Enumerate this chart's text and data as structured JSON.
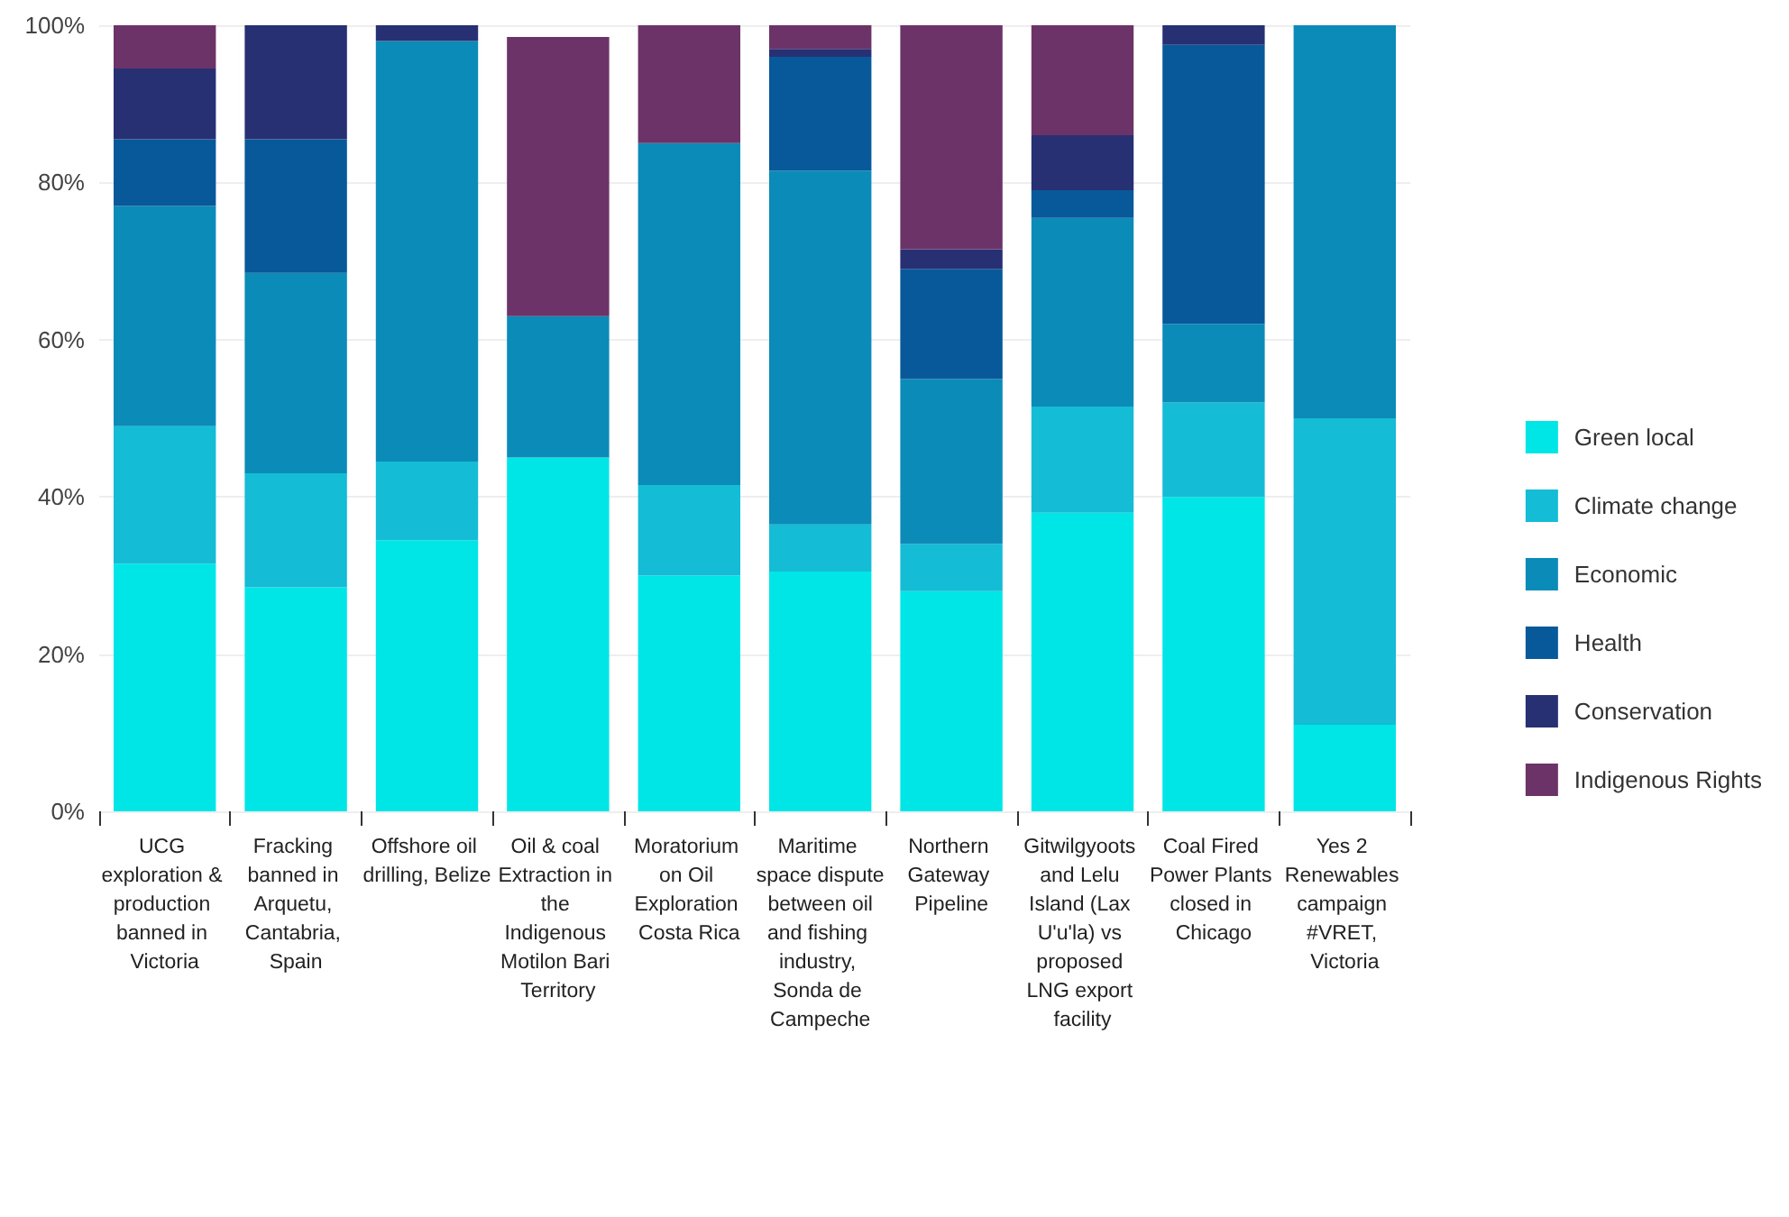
{
  "chart_data": {
    "type": "bar",
    "stacked": true,
    "categories": [
      "UCG exploration & production banned in Victoria",
      "Fracking banned in Arquetu, Cantabria, Spain",
      "Offshore oil drilling, Belize",
      "Oil & coal Extraction in the Indigenous Motilon Bari Territory",
      "Moratorium on Oil Exploration Costa Rica",
      "Maritime space dispute between oil and fishing industry, Sonda de Campeche",
      "Northern Gateway Pipeline",
      "Gitwilgyoots and Lelu Island (Lax U'u'la) vs proposed LNG export facility",
      "Coal Fired Power Plants closed in Chicago",
      "Yes 2 Renewables campaign #VRET, Victoria"
    ],
    "series": [
      {
        "name": "Green local",
        "color": "#00e5e5",
        "values": [
          31.5,
          28.5,
          34.5,
          45,
          30,
          30.5,
          28,
          38,
          40,
          11
        ]
      },
      {
        "name": "Climate change",
        "color": "#14bcd6",
        "values": [
          17.5,
          14.5,
          10,
          0,
          11.5,
          6,
          6,
          13.5,
          12,
          39
        ]
      },
      {
        "name": "Economic",
        "color": "#0a8bb8",
        "values": [
          28,
          25.5,
          53.5,
          18,
          43.5,
          45,
          21,
          24,
          10,
          50
        ]
      },
      {
        "name": "Health",
        "color": "#07599a",
        "values": [
          8.5,
          17,
          0,
          0,
          0,
          14.5,
          14,
          3.5,
          35.5,
          0
        ]
      },
      {
        "name": "Conservation",
        "color": "#283074",
        "values": [
          9,
          14.5,
          2,
          0,
          0,
          1,
          2.5,
          7,
          2.5,
          0
        ]
      },
      {
        "name": "Indigenous Rights",
        "color": "#6b3367",
        "values": [
          5.5,
          0,
          0,
          35.5,
          15,
          3,
          28.5,
          14,
          0,
          0
        ]
      }
    ],
    "ylim": [
      0,
      100
    ],
    "yticks": [
      {
        "value": 0,
        "label": "0%"
      },
      {
        "value": 20,
        "label": "20%"
      },
      {
        "value": 40,
        "label": "40%"
      },
      {
        "value": 60,
        "label": "60%"
      },
      {
        "value": 80,
        "label": "80%"
      },
      {
        "value": 100,
        "label": "100%"
      }
    ],
    "grid": "y",
    "legend": "right"
  }
}
